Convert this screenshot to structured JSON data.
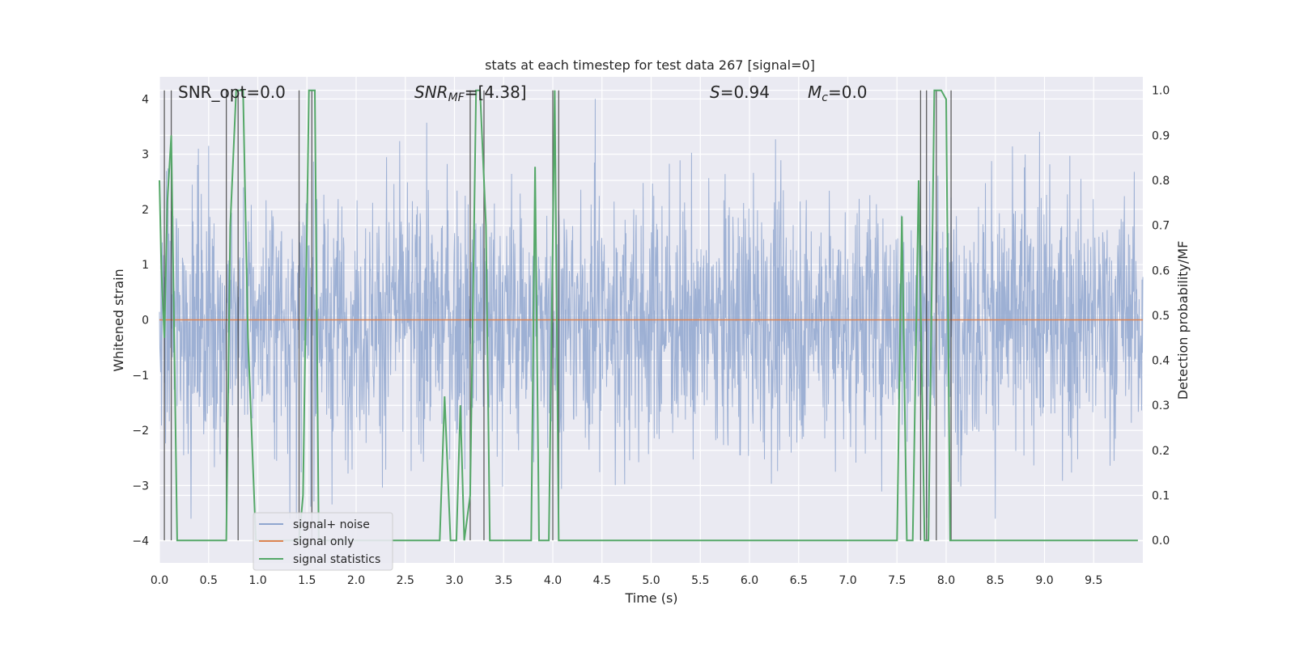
{
  "chart_data": {
    "type": "line",
    "title": "stats at each timestep for test data 267 [signal=0]",
    "xlabel": "Time (s)",
    "ylabel_left": "Whitened strain",
    "ylabel_right": "Detection probability/MF",
    "xlim": [
      0.0,
      10.0
    ],
    "ylim_left": [
      -4.4,
      4.4
    ],
    "ylim_right": [
      -0.05,
      1.03
    ],
    "x_ticks": [
      "0.0",
      "0.5",
      "1.0",
      "1.5",
      "2.0",
      "2.5",
      "3.0",
      "3.5",
      "4.0",
      "4.5",
      "5.0",
      "5.5",
      "6.0",
      "6.5",
      "7.0",
      "7.5",
      "8.0",
      "8.5",
      "9.0",
      "9.5"
    ],
    "y_ticks_left": [
      "4",
      "3",
      "2",
      "1",
      "0",
      "−1",
      "−2",
      "−3",
      "−4"
    ],
    "y_ticks_right": [
      "1.0",
      "0.9",
      "0.8",
      "0.7",
      "0.6",
      "0.5",
      "0.4",
      "0.3",
      "0.2",
      "0.1",
      "0.0"
    ],
    "grid": true,
    "legend_placement": "lower-left",
    "series": [
      {
        "name": "signal+ noise",
        "color": "#8fa6cf",
        "axis": "left",
        "description": "dense noise, roughly within -2.5..3.0, peaks up to about 4"
      },
      {
        "name": "signal only",
        "color": "#dd8452",
        "axis": "left",
        "value": 0.0
      },
      {
        "name": "signal statistics",
        "color": "#55a868",
        "axis": "right",
        "x": [
          0.0,
          0.02,
          0.05,
          0.08,
          0.12,
          0.18,
          0.22,
          0.68,
          0.72,
          0.78,
          0.85,
          0.9,
          0.98,
          1.42,
          1.46,
          1.52,
          1.58,
          1.62,
          2.85,
          2.9,
          2.96,
          3.02,
          3.06,
          3.1,
          3.16,
          3.22,
          3.26,
          3.32,
          3.36,
          3.44,
          3.78,
          3.82,
          3.86,
          3.9,
          3.96,
          4.02,
          4.06,
          4.12,
          7.5,
          7.55,
          7.6,
          7.66,
          7.72,
          7.78,
          7.82,
          7.88,
          7.95,
          8.0,
          8.04,
          8.1,
          9.95
        ],
        "y": [
          0.8,
          0.6,
          0.45,
          0.75,
          0.9,
          0.0,
          0.0,
          0.0,
          0.7,
          1.0,
          1.0,
          0.45,
          0.0,
          0.0,
          0.1,
          1.0,
          1.0,
          0.0,
          0.0,
          0.32,
          0.0,
          0.0,
          0.3,
          0.0,
          0.1,
          1.0,
          1.0,
          0.7,
          0.0,
          0.0,
          0.0,
          0.83,
          0.0,
          0.0,
          0.0,
          1.0,
          0.0,
          0.0,
          0.0,
          0.72,
          0.0,
          0.0,
          0.8,
          0.0,
          0.0,
          1.0,
          1.0,
          0.98,
          0.0,
          0.0,
          0.0
        ]
      }
    ],
    "vertical_markers_x": [
      0.05,
      0.12,
      0.68,
      0.8,
      1.42,
      1.55,
      3.16,
      3.3,
      4.0,
      4.06,
      7.74,
      7.8,
      7.9,
      8.05
    ],
    "annotations": [
      {
        "text": "SNR_opt=0.0"
      },
      {
        "text_it": "SNR",
        "text_sub_it": "MF",
        "text": "=[4.38]"
      },
      {
        "text_it": "S",
        "text": "=0.94"
      },
      {
        "text_it": "M",
        "text_sub_it": "c",
        "text": "=0.0"
      }
    ]
  }
}
